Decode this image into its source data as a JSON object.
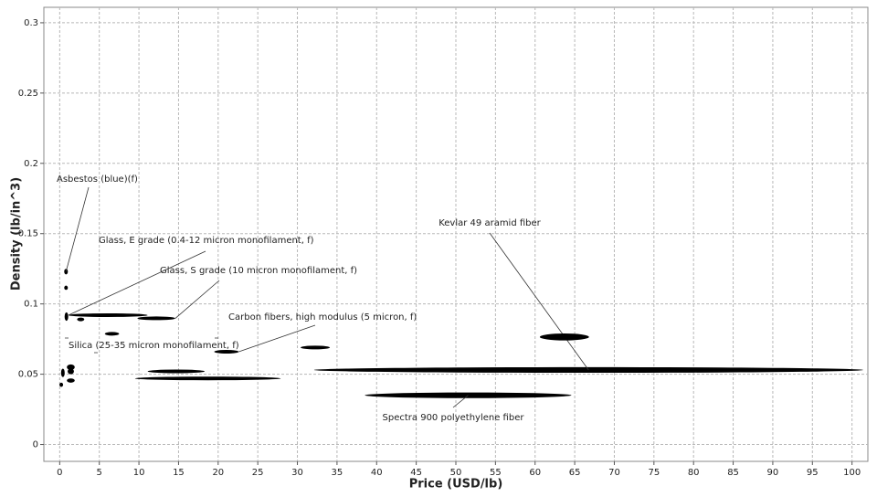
{
  "chart_data": {
    "type": "range-ellipse",
    "x_label": "Price (USD/lb)",
    "y_label": "Density (lb/in^3)",
    "xlim": [
      -2,
      102
    ],
    "ylim": [
      -0.012,
      0.311
    ],
    "xticks": [
      0,
      5,
      10,
      15,
      20,
      25,
      30,
      35,
      40,
      45,
      50,
      55,
      60,
      65,
      70,
      75,
      80,
      85,
      90,
      95,
      100
    ],
    "yticks": [
      0,
      0.05,
      0.1,
      0.15,
      0.2,
      0.25,
      0.3
    ],
    "grid": true,
    "color": "#000000",
    "materials": [
      {
        "name": "Kevlar 49 aramid fiber",
        "x": [
          32.1,
          101.4
        ],
        "y": [
          0.051,
          0.055
        ]
      },
      {
        "name": "Spectra 900 polyethylene fiber",
        "x": [
          38.5,
          64.6
        ],
        "y": [
          0.033,
          0.037
        ]
      },
      {
        "name": "Carbon fibers, high modulus (5 micron, f)",
        "x": [
          19.5,
          22.6
        ],
        "y": [
          0.065,
          0.067
        ]
      },
      {
        "name": "Glass, S grade (10 micron monofilament, f)",
        "x": [
          9.8,
          14.6
        ],
        "y": [
          0.089,
          0.0905
        ]
      },
      {
        "name": "Glass, E grade (0.4-12 micron monofilament, f)",
        "x": [
          1.1,
          11.1
        ],
        "y": [
          0.091,
          0.093
        ]
      },
      {
        "name": "Asbestos (blue)(f)",
        "x": [
          0.7,
          0.9
        ],
        "y": [
          0.121,
          0.125
        ]
      },
      {
        "name": "Silica (25-35 micron monofilament, f)",
        "x": [
          5.7,
          7.5
        ],
        "y": [
          0.078,
          0.0795
        ]
      },
      {
        "x": [
          60.6,
          66.8
        ],
        "y": [
          0.074,
          0.079
        ]
      },
      {
        "x": [
          30.4,
          34.1
        ],
        "y": [
          0.068,
          0.07
        ]
      },
      {
        "x": [
          9.5,
          27.9
        ],
        "y": [
          0.046,
          0.048
        ]
      },
      {
        "x": [
          11.1,
          18.3
        ],
        "y": [
          0.051,
          0.053
        ]
      },
      {
        "x": [
          0.7,
          0.9
        ],
        "y": [
          0.11,
          0.113
        ]
      },
      {
        "x": [
          2.2,
          3.1
        ],
        "y": [
          0.088,
          0.09
        ]
      },
      {
        "x": [
          0.7,
          1.0
        ],
        "y": [
          0.088,
          0.094
        ]
      },
      {
        "x": [
          0.9,
          1.9
        ],
        "y": [
          0.053,
          0.057
        ]
      },
      {
        "x": [
          0.9,
          1.9
        ],
        "y": [
          0.044,
          0.047
        ]
      },
      {
        "x": [
          1.0,
          1.8
        ],
        "y": [
          0.05,
          0.054
        ]
      },
      {
        "x": [
          0.2,
          0.6
        ],
        "y": [
          0.048,
          0.054
        ]
      },
      {
        "x": [
          0.1,
          0.3
        ],
        "y": [
          0.041,
          0.044
        ]
      }
    ]
  }
}
